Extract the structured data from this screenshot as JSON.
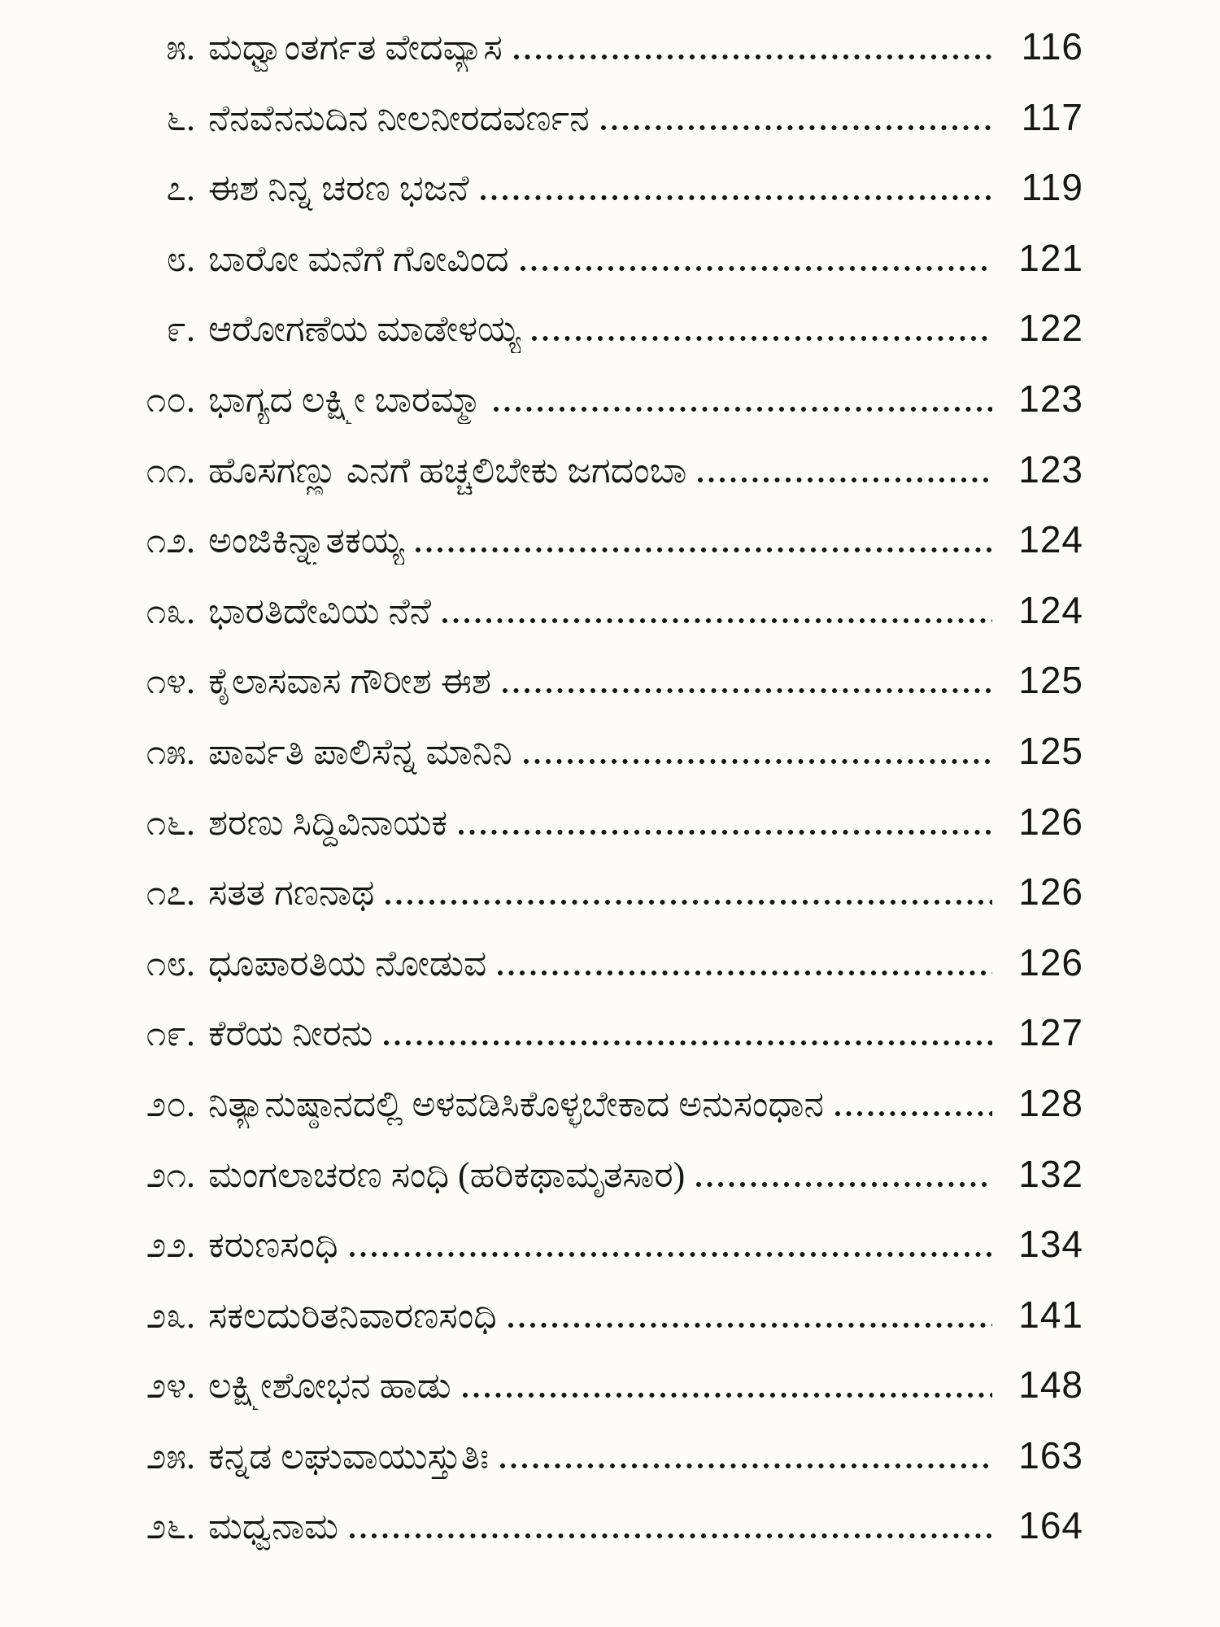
{
  "page": {
    "kind": "table-of-contents",
    "language": "Kannada",
    "ink_color": "#161616",
    "paper_color": "#fcfbf8"
  },
  "toc": {
    "entries": [
      {
        "num": "೫.",
        "title": "ಮಧ್ವಾಂತರ್ಗತ ವೇದವ್ಯಾಸ",
        "page": "116"
      },
      {
        "num": "೬.",
        "title": "ನೆನವೆನನುದಿನ ನೀಲನೀರದವರ್ಣನ",
        "page": "117"
      },
      {
        "num": "೭.",
        "title": "ಈಶ ನಿನ್ನ ಚರಣ ಭಜನೆ",
        "page": "119"
      },
      {
        "num": "೮.",
        "title": "ಬಾರೋ ಮನೆಗೆ ಗೋವಿಂದ",
        "page": "121"
      },
      {
        "num": "೯.",
        "title": "ಆರೋಗಣೆಯ ಮಾಡೇಳಯ್ಯ",
        "page": "122"
      },
      {
        "num": "೧೦.",
        "title": "ಭಾಗ್ಯದ ಲಕ್ಷ್ಮೀ ಬಾರಮ್ಮಾ",
        "page": "123"
      },
      {
        "num": "೧೧.",
        "title": "ಹೊಸಗಣ್ಣು ಎನಗೆ ಹಚ್ಚಲಿಬೇಕು ಜಗದಂಬಾ",
        "page": "123"
      },
      {
        "num": "೧೨.",
        "title": "ಅಂಜಿಕಿನ್ನ್ಯಾತಕಯ್ಯ",
        "page": "124"
      },
      {
        "num": "೧೩.",
        "title": "ಭಾರತಿದೇವಿಯ ನೆನೆ",
        "page": "124"
      },
      {
        "num": "೧೪.",
        "title": "ಕೈಲಾಸವಾಸ ಗೌರೀಶ ಈಶ",
        "page": "125"
      },
      {
        "num": "೧೫.",
        "title": "ಪಾರ್ವತಿ ಪಾಲಿಸೆನ್ನ ಮಾನಿನಿ",
        "page": "125"
      },
      {
        "num": "೧೬.",
        "title": "ಶರಣು ಸಿದ್ಧಿವಿನಾಯಕ",
        "page": "126"
      },
      {
        "num": "೧೭.",
        "title": "ಸತತ ಗಣನಾಥ",
        "page": "126"
      },
      {
        "num": "೧೮.",
        "title": "ಧೂಪಾರತಿಯ ನೋಡುವ",
        "page": "126"
      },
      {
        "num": "೧೯.",
        "title": "ಕೆರೆಯ ನೀರನು",
        "page": "127"
      },
      {
        "num": "೨೦.",
        "title": "ನಿತ್ಯಾನುಷ್ಠಾನದಲ್ಲಿ ಅಳವಡಿಸಿಕೊಳ್ಳಬೇಕಾದ ಅನುಸಂಧಾನ",
        "page": "128"
      },
      {
        "num": "೨೧.",
        "title": "ಮಂಗಲಾಚರಣ ಸಂಧಿ (ಹರಿಕಥಾಮೃತಸಾರ)",
        "page": "132"
      },
      {
        "num": "೨೨.",
        "title": "ಕರುಣಸಂಧಿ",
        "page": "134"
      },
      {
        "num": "೨೩.",
        "title": "ಸಕಲದುರಿತನಿವಾರಣಸಂಧಿ",
        "page": "141"
      },
      {
        "num": "೨೪.",
        "title": "ಲಕ್ಷ್ಮೀಶೋಭನ ಹಾಡು",
        "page": "148"
      },
      {
        "num": "೨೫.",
        "title": "ಕನ್ನಡ ಲಘುವಾಯುಸ್ತುತಿಃ",
        "page": "163"
      },
      {
        "num": "೨೬.",
        "title": "ಮಧ್ವನಾಮ",
        "page": "164"
      }
    ]
  }
}
